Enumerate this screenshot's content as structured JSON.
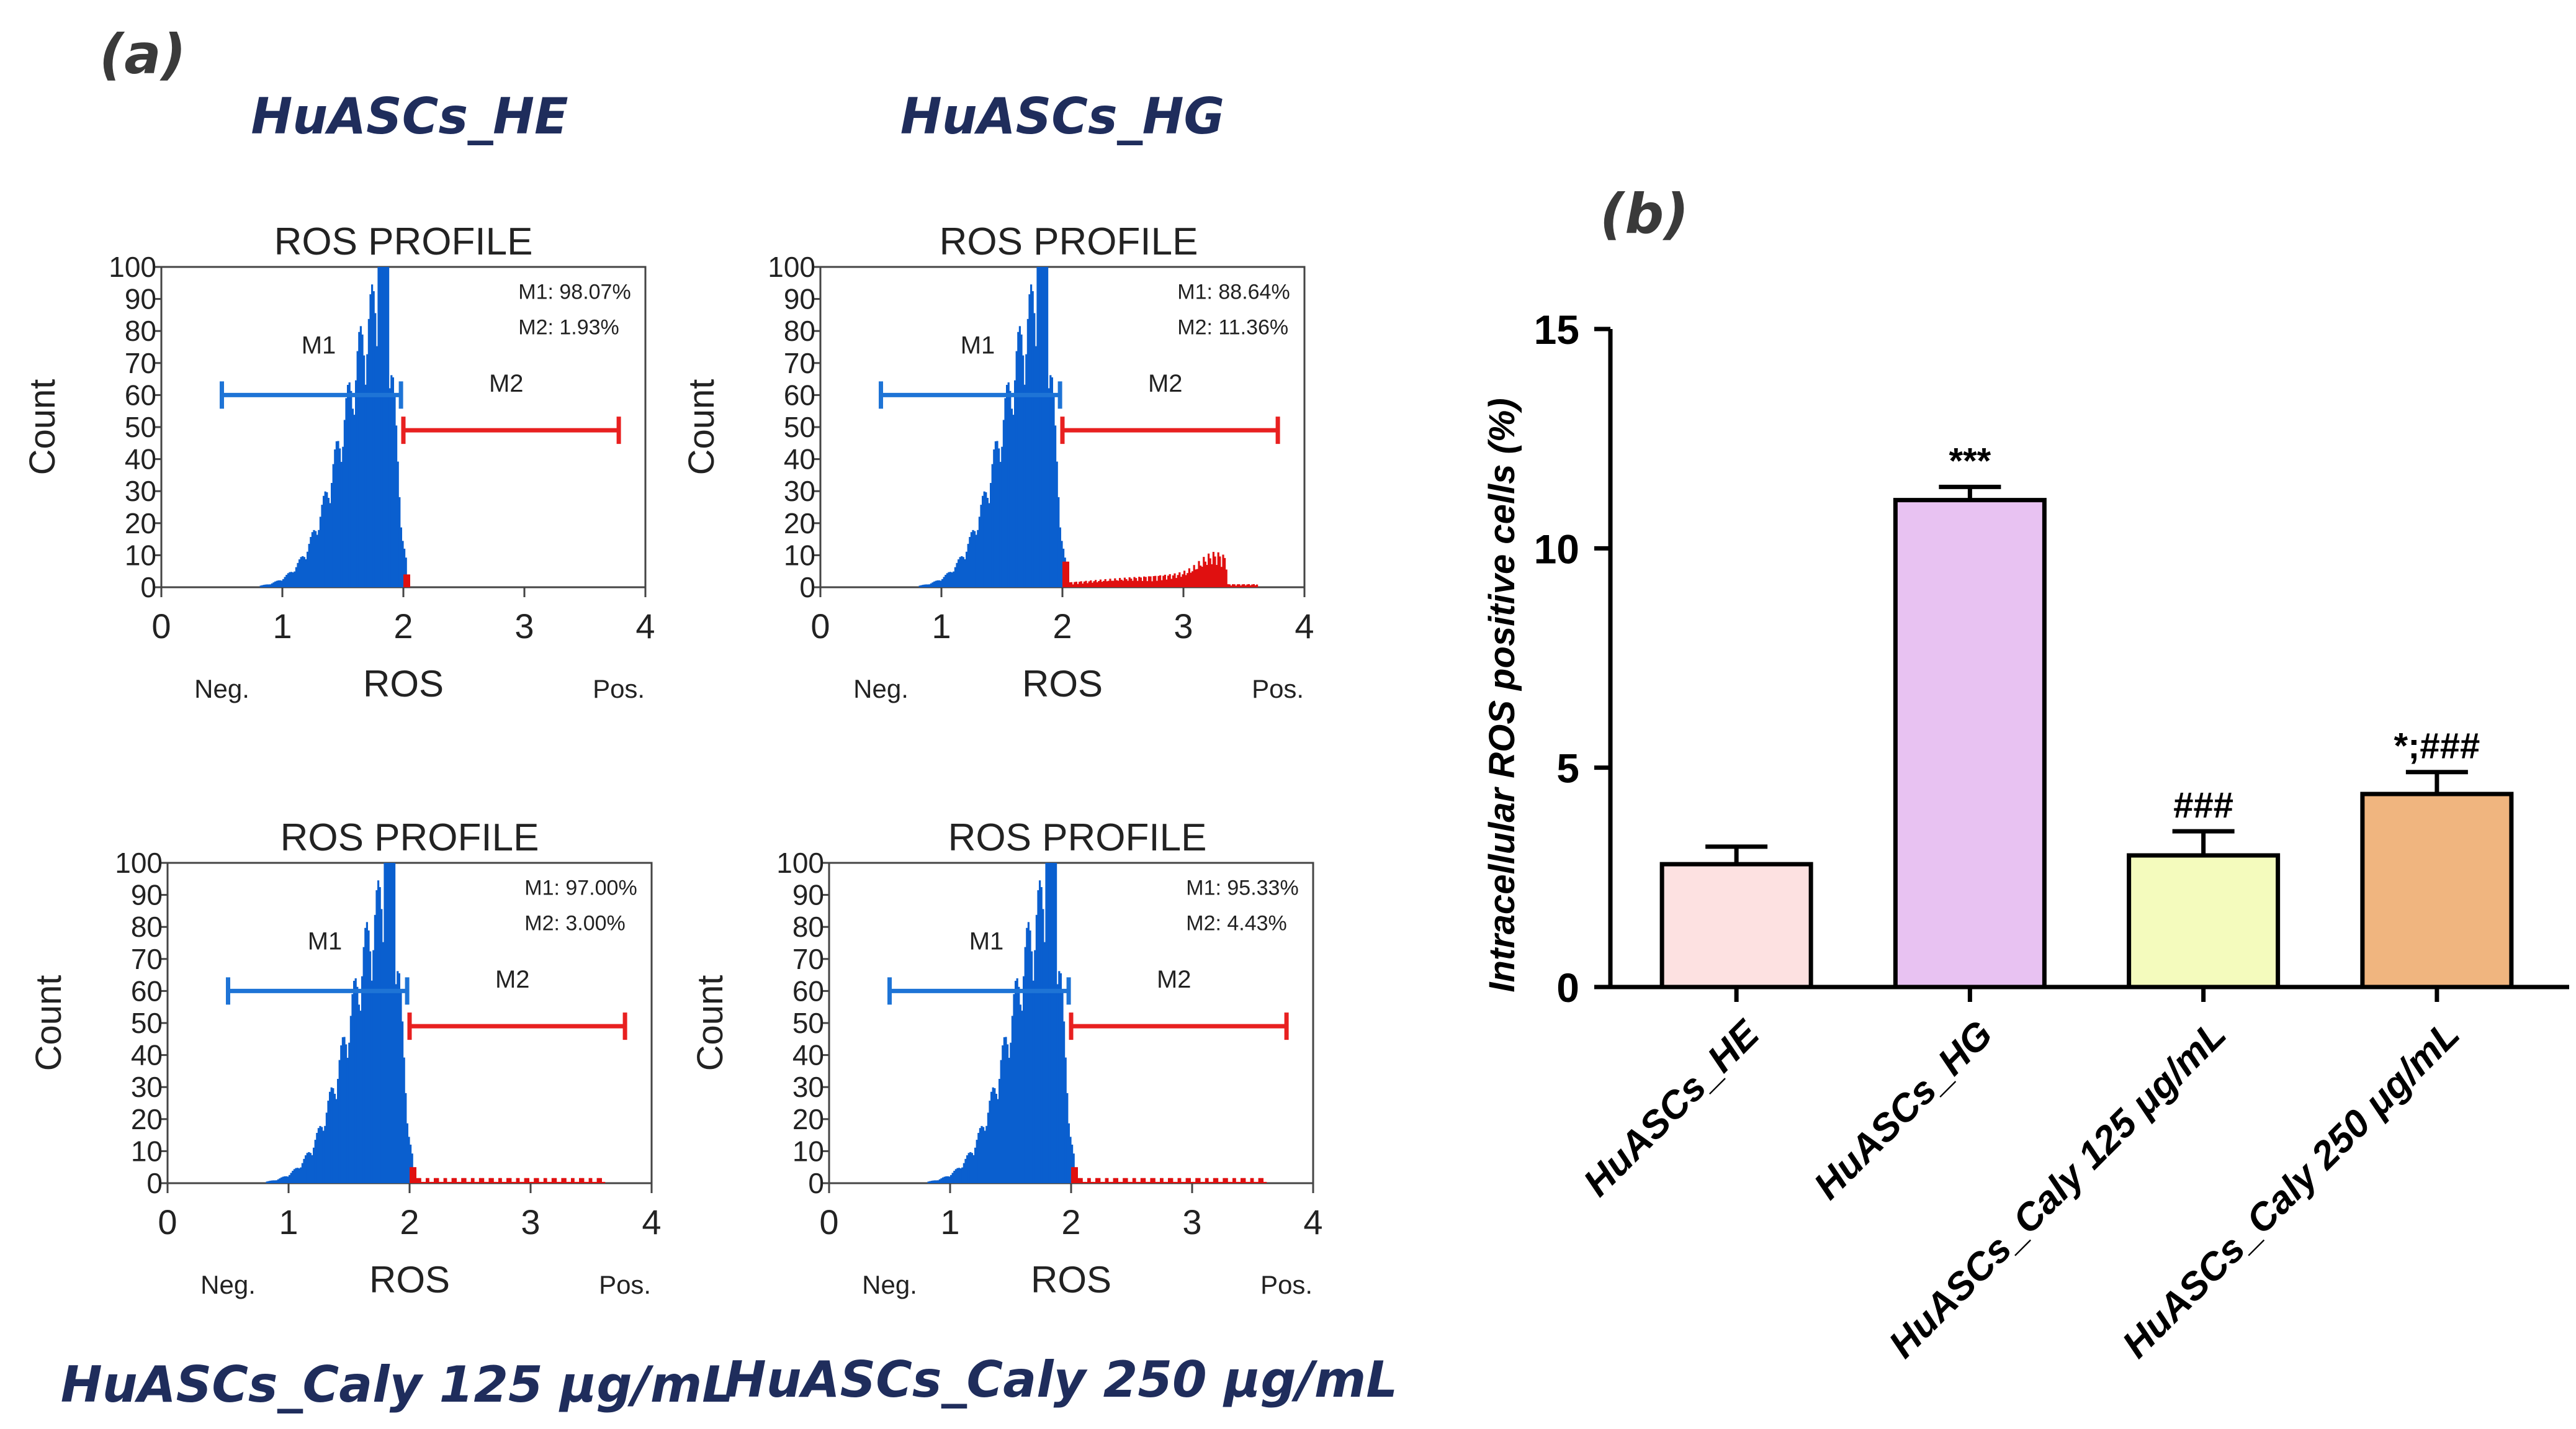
{
  "panel_a_label": "(a)",
  "panel_b_label": "(b)",
  "histograms": [
    {
      "condition": "HuASCs_HE",
      "title": "ROS PROFILE",
      "ylabel": "Count",
      "xlabel": "ROS",
      "neg_label": "Neg.",
      "pos_label": "Pos.",
      "m1_name": "M1",
      "m2_name": "M2",
      "m1_text": "M1: 98.07%",
      "m2_text": "M2: 1.93%",
      "x_ticks": [
        "0",
        "1",
        "2",
        "3",
        "4"
      ],
      "y_ticks": [
        "0",
        "10",
        "20",
        "30",
        "40",
        "50",
        "60",
        "70",
        "80",
        "90",
        "100"
      ],
      "tail": "none"
    },
    {
      "condition": "HuASCs_HG",
      "title": "ROS PROFILE",
      "ylabel": "Count",
      "xlabel": "ROS",
      "neg_label": "Neg.",
      "pos_label": "Pos.",
      "m1_name": "M1",
      "m2_name": "M2",
      "m1_text": "M1: 88.64%",
      "m2_text": "M2: 11.36%",
      "x_ticks": [
        "0",
        "1",
        "2",
        "3",
        "4"
      ],
      "y_ticks": [
        "0",
        "10",
        "20",
        "30",
        "40",
        "50",
        "60",
        "70",
        "80",
        "90",
        "100"
      ],
      "tail": "high"
    },
    {
      "condition": "HuASCs_Caly 125 μg/mL",
      "title": "ROS PROFILE",
      "ylabel": "Count",
      "xlabel": "ROS",
      "neg_label": "Neg.",
      "pos_label": "Pos.",
      "m1_name": "M1",
      "m2_name": "M2",
      "m1_text": "M1: 97.00%",
      "m2_text": "M2: 3.00%",
      "x_ticks": [
        "0",
        "1",
        "2",
        "3",
        "4"
      ],
      "y_ticks": [
        "0",
        "10",
        "20",
        "30",
        "40",
        "50",
        "60",
        "70",
        "80",
        "90",
        "100"
      ],
      "tail": "low"
    },
    {
      "condition": "HuASCs_Caly 250 μg/mL",
      "title": "ROS PROFILE",
      "ylabel": "Count",
      "xlabel": "ROS",
      "neg_label": "Neg.",
      "pos_label": "Pos.",
      "m1_name": "M1",
      "m2_name": "M2",
      "m1_text": "M1: 95.33%",
      "m2_text": "M2: 4.43%",
      "x_ticks": [
        "0",
        "1",
        "2",
        "3",
        "4"
      ],
      "y_ticks": [
        "0",
        "10",
        "20",
        "30",
        "40",
        "50",
        "60",
        "70",
        "80",
        "90",
        "100"
      ],
      "tail": "low"
    }
  ],
  "colors": {
    "m1": "#1e74d6",
    "m2": "#e82020",
    "hist": "#0a5fcf",
    "tail": "#e01010",
    "condition": "#1f2d5c"
  },
  "chart_data": {
    "type": "bar",
    "ylabel": "Intracellular ROS positive cells (%)",
    "xlabel": "",
    "ylim": [
      0,
      15
    ],
    "y_ticks": [
      0,
      5,
      10,
      15
    ],
    "categories": [
      "HuASCs_HE",
      "HuASCs_HG",
      "HuASCs_Caly 125 μg/mL",
      "HuASCs_Caly 250 μg/mL"
    ],
    "values": [
      2.8,
      11.1,
      3.0,
      4.4
    ],
    "errors": [
      0.4,
      0.3,
      0.55,
      0.5
    ],
    "annotations": [
      "",
      "***",
      "###",
      "*;###"
    ],
    "colors": [
      "#fde1e1",
      "#e8c2f2",
      "#f4fbbd",
      "#f0b57f"
    ]
  }
}
